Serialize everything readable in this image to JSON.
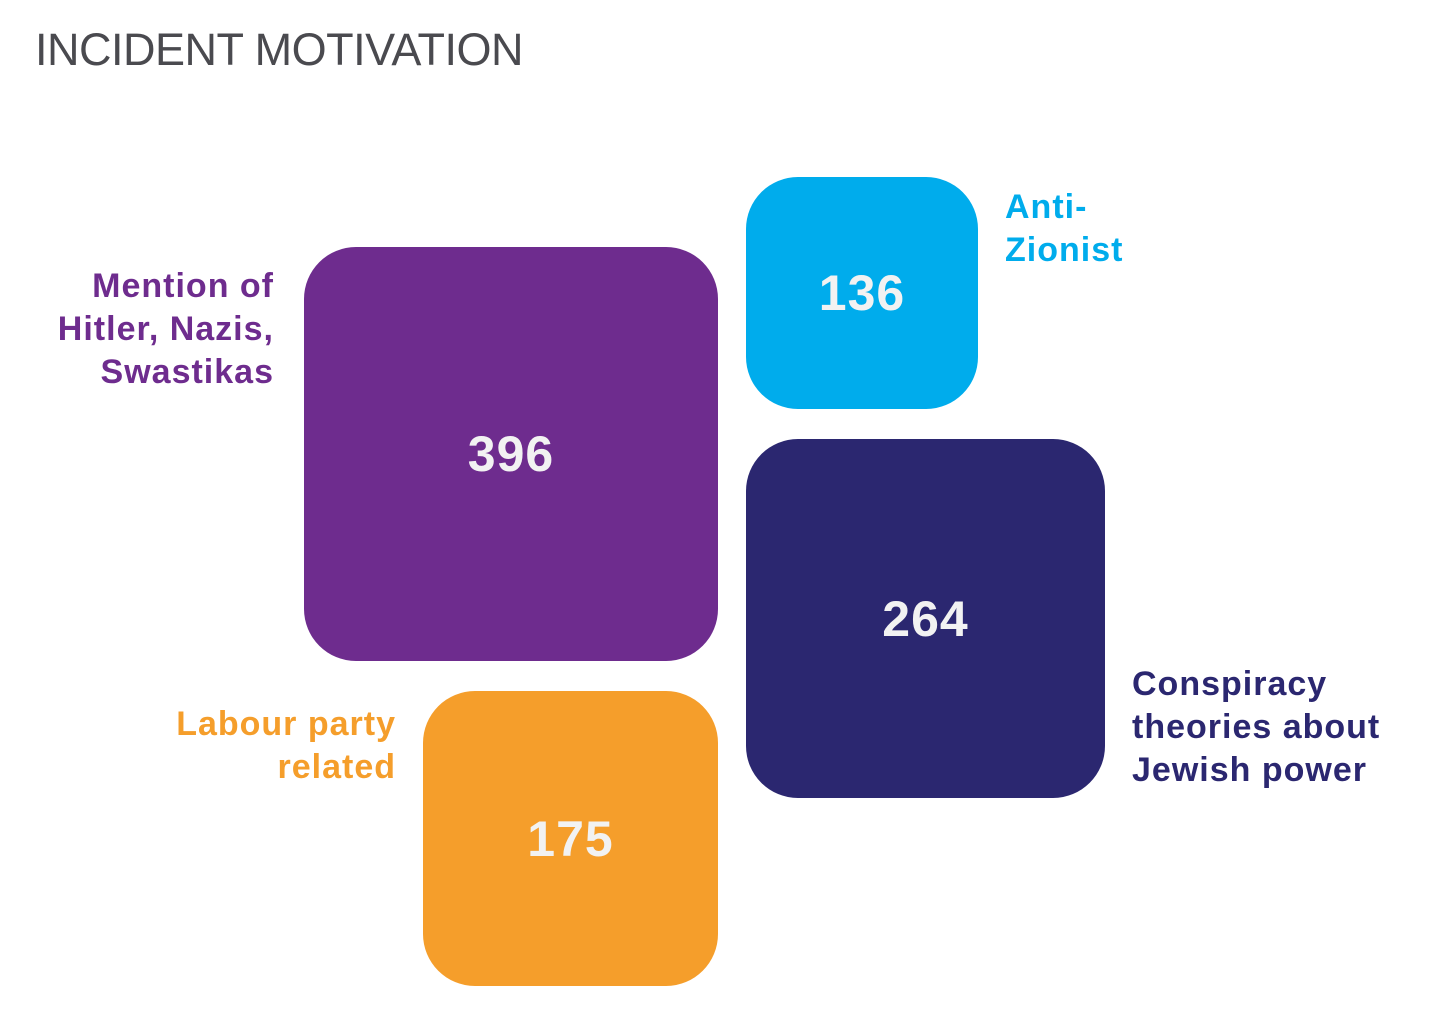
{
  "title": "INCIDENT MOTIVATION",
  "chart_data": {
    "type": "bar",
    "title": "INCIDENT MOTIVATION",
    "categories": [
      "Mention of Hitler, Nazis, Swastikas",
      "Conspiracy theories about Jewish power",
      "Labour party related",
      "Anti-Zionist"
    ],
    "values": [
      396,
      264,
      175,
      136
    ],
    "colors": [
      "#6e2c8e",
      "#2b2770",
      "#f59e2b",
      "#00acec"
    ],
    "items": [
      {
        "label": "Mention of\nHitler, Nazis,\nSwastikas",
        "value": "396",
        "color": "#6e2c8e"
      },
      {
        "label": "Conspiracy\ntheories about\nJewish power",
        "value": "264",
        "color": "#2b2770"
      },
      {
        "label": "Labour party\nrelated",
        "value": "175",
        "color": "#f59e2b"
      },
      {
        "label": "Anti-\nZionist",
        "value": "136",
        "color": "#00acec"
      }
    ]
  }
}
